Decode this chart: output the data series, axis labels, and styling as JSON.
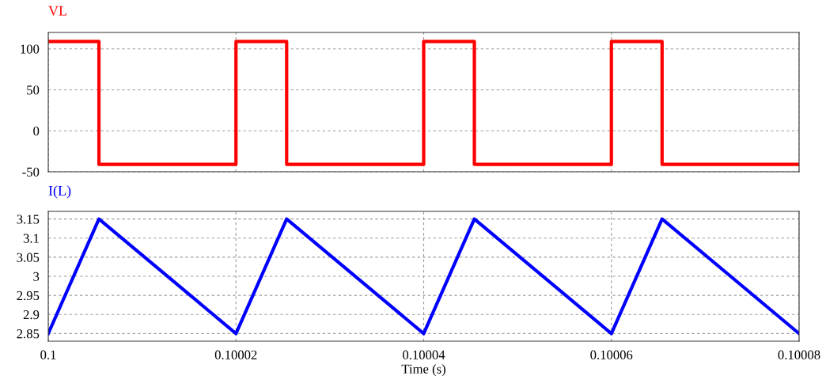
{
  "chart_data": [
    {
      "type": "step",
      "series": [
        {
          "name": "VL",
          "color": "#ff0000",
          "x": [
            0.1,
            0.1000054,
            0.10002,
            0.1000254,
            0.10004,
            0.1000454,
            0.10006,
            0.1000654,
            0.10008
          ],
          "values": [
            109,
            -41,
            109,
            -41,
            109,
            -41,
            109,
            -41,
            -41
          ]
        }
      ],
      "xlim": [
        0.1,
        0.10008
      ],
      "xticks": [
        0.1,
        0.10002,
        0.10004,
        0.10006,
        0.10008
      ],
      "ylim": [
        -50,
        120
      ],
      "yticks": [
        -50,
        0,
        50,
        100
      ],
      "grid": true,
      "tick_labels": "y",
      "line_style": "solid",
      "marker": "none"
    },
    {
      "type": "line",
      "xlabel": "Time (s)",
      "series": [
        {
          "name": "I(L)",
          "color": "#0000ff",
          "x": [
            0.1,
            0.1000054,
            0.10002,
            0.1000254,
            0.10004,
            0.1000454,
            0.10006,
            0.1000654,
            0.10008
          ],
          "values": [
            2.85,
            3.15,
            2.85,
            3.15,
            2.85,
            3.15,
            2.85,
            3.15,
            2.85
          ]
        }
      ],
      "xlim": [
        0.1,
        0.10008
      ],
      "xticks": [
        0.1,
        0.10002,
        0.10004,
        0.10006,
        0.10008
      ],
      "ylim": [
        2.83,
        3.17
      ],
      "yticks": [
        2.85,
        2.9,
        2.95,
        3,
        3.05,
        3.1,
        3.15
      ],
      "grid": true,
      "line_style": "solid",
      "marker": "none"
    }
  ]
}
